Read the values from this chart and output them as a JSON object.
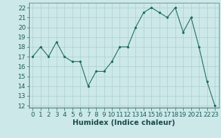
{
  "x": [
    0,
    1,
    2,
    3,
    4,
    5,
    6,
    7,
    8,
    9,
    10,
    11,
    12,
    13,
    14,
    15,
    16,
    17,
    18,
    19,
    20,
    21,
    22,
    23
  ],
  "y": [
    17.0,
    18.0,
    17.0,
    18.5,
    17.0,
    16.5,
    16.5,
    14.0,
    15.5,
    15.5,
    16.5,
    18.0,
    18.0,
    20.0,
    21.5,
    22.0,
    21.5,
    21.0,
    22.0,
    19.5,
    21.0,
    18.0,
    14.5,
    12.0
  ],
  "xlabel": "Humidex (Indice chaleur)",
  "xlim": [
    -0.5,
    23.5
  ],
  "ylim": [
    11.8,
    22.5
  ],
  "yticks": [
    12,
    13,
    14,
    15,
    16,
    17,
    18,
    19,
    20,
    21,
    22
  ],
  "xticks": [
    0,
    1,
    2,
    3,
    4,
    5,
    6,
    7,
    8,
    9,
    10,
    11,
    12,
    13,
    14,
    15,
    16,
    17,
    18,
    19,
    20,
    21,
    22,
    23
  ],
  "line_color": "#1a6b5a",
  "marker_color": "#1a6b5a",
  "bg_color": "#cde8e8",
  "grid_color": "#aacfcf",
  "tick_label_fontsize": 6.5,
  "xlabel_fontsize": 7.5
}
